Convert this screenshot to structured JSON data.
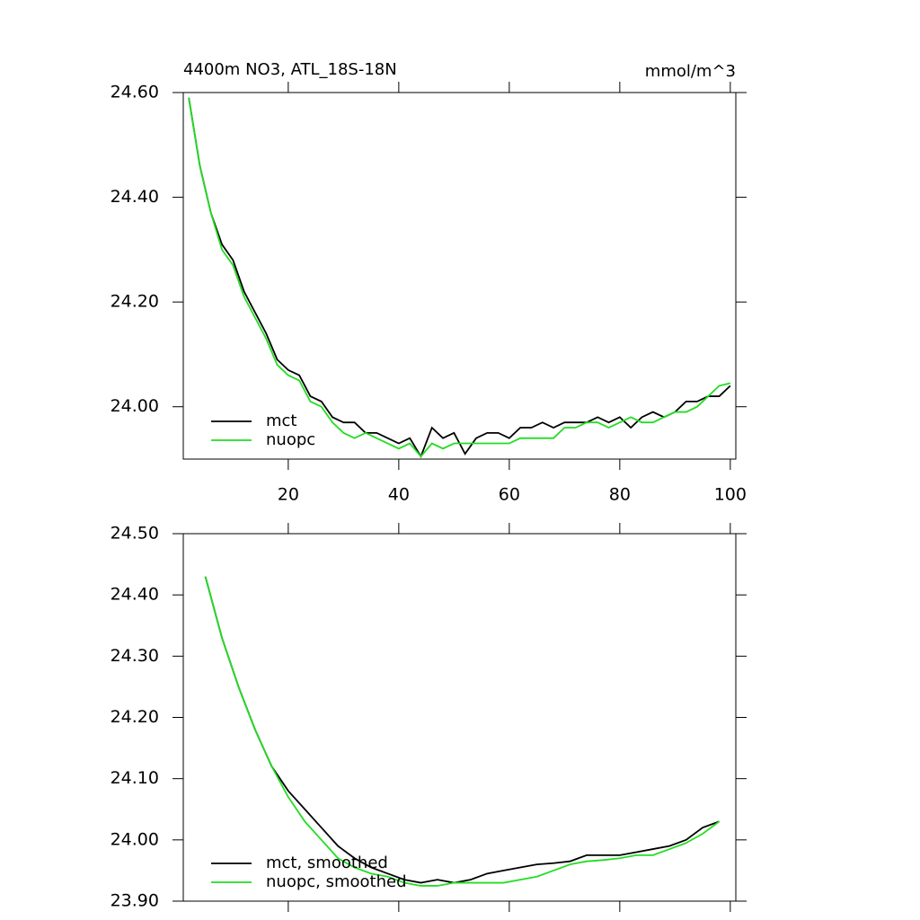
{
  "chart_data": [
    {
      "type": "line",
      "title": "4400m NO3, ATL_18S-18N",
      "units": "mmol/m^3",
      "x": [
        2,
        4,
        6,
        8,
        10,
        12,
        14,
        16,
        18,
        20,
        22,
        24,
        26,
        28,
        30,
        32,
        34,
        36,
        38,
        40,
        42,
        44,
        46,
        48,
        50,
        52,
        54,
        56,
        58,
        60,
        62,
        64,
        66,
        68,
        70,
        72,
        74,
        76,
        78,
        80,
        82,
        84,
        86,
        88,
        90,
        92,
        94,
        96,
        98,
        100
      ],
      "series": [
        {
          "name": "mct",
          "color": "#000000",
          "values": [
            24.59,
            24.46,
            24.37,
            24.31,
            24.28,
            24.22,
            24.18,
            24.14,
            24.09,
            24.07,
            24.06,
            24.02,
            24.01,
            23.98,
            23.97,
            23.97,
            23.95,
            23.95,
            23.94,
            23.93,
            23.94,
            23.905,
            23.96,
            23.94,
            23.95,
            23.91,
            23.94,
            23.95,
            23.95,
            23.94,
            23.96,
            23.96,
            23.97,
            23.96,
            23.97,
            23.97,
            23.97,
            23.98,
            23.97,
            23.98,
            23.96,
            23.98,
            23.99,
            23.98,
            23.99,
            24.01,
            24.01,
            24.02,
            24.02,
            24.04
          ]
        },
        {
          "name": "nuopc",
          "color": "#22dd22",
          "values": [
            24.59,
            24.46,
            24.37,
            24.3,
            24.27,
            24.21,
            24.17,
            24.13,
            24.08,
            24.06,
            24.05,
            24.01,
            24.0,
            23.97,
            23.95,
            23.94,
            23.95,
            23.94,
            23.93,
            23.92,
            23.93,
            23.905,
            23.93,
            23.92,
            23.93,
            23.93,
            23.93,
            23.93,
            23.93,
            23.93,
            23.94,
            23.94,
            23.94,
            23.94,
            23.96,
            23.96,
            23.97,
            23.97,
            23.96,
            23.97,
            23.98,
            23.97,
            23.97,
            23.98,
            23.99,
            23.99,
            24.0,
            24.02,
            24.04,
            24.045
          ]
        }
      ],
      "xlim": [
        1,
        101
      ],
      "ylim": [
        23.9,
        24.6
      ],
      "xticks": [
        20,
        40,
        60,
        80,
        100
      ],
      "yticks": [
        {
          "value": 24.0,
          "label": "24.00"
        },
        {
          "value": 24.2,
          "label": "24.20"
        },
        {
          "value": 24.4,
          "label": "24.40"
        },
        {
          "value": 24.6,
          "label": "24.60"
        }
      ],
      "legend": "lower left"
    },
    {
      "type": "line",
      "x": [
        5,
        8,
        11,
        14,
        17,
        20,
        23,
        26,
        29,
        32,
        35,
        38,
        41,
        44,
        47,
        50,
        53,
        56,
        59,
        62,
        65,
        68,
        71,
        74,
        77,
        80,
        83,
        86,
        89,
        92,
        95,
        98
      ],
      "series": [
        {
          "name": "mct, smoothed",
          "color": "#000000",
          "values": [
            24.43,
            24.33,
            24.25,
            24.18,
            24.12,
            24.08,
            24.05,
            24.02,
            23.99,
            23.97,
            23.955,
            23.945,
            23.935,
            23.93,
            23.935,
            23.93,
            23.935,
            23.945,
            23.95,
            23.955,
            23.96,
            23.962,
            23.965,
            23.975,
            23.975,
            23.975,
            23.98,
            23.985,
            23.99,
            24.0,
            24.02,
            24.03
          ]
        },
        {
          "name": "nuopc, smoothed",
          "color": "#22dd22",
          "values": [
            24.43,
            24.33,
            24.25,
            24.18,
            24.12,
            24.07,
            24.03,
            24.0,
            23.97,
            23.955,
            23.945,
            23.94,
            23.93,
            23.925,
            23.925,
            23.93,
            23.93,
            23.93,
            23.93,
            23.935,
            23.94,
            23.95,
            23.96,
            23.965,
            23.967,
            23.97,
            23.975,
            23.975,
            23.985,
            23.995,
            24.01,
            24.03
          ]
        }
      ],
      "xlim": [
        1,
        101
      ],
      "ylim": [
        23.9,
        24.5
      ],
      "xticks": [
        20,
        40,
        60,
        80,
        100
      ],
      "yticks": [
        {
          "value": 23.9,
          "label": "23.90"
        },
        {
          "value": 24.0,
          "label": "24.00"
        },
        {
          "value": 24.1,
          "label": "24.10"
        },
        {
          "value": 24.2,
          "label": "24.20"
        },
        {
          "value": 24.3,
          "label": "24.30"
        },
        {
          "value": 24.4,
          "label": "24.40"
        },
        {
          "value": 24.5,
          "label": "24.50"
        }
      ],
      "legend": "lower left"
    }
  ]
}
